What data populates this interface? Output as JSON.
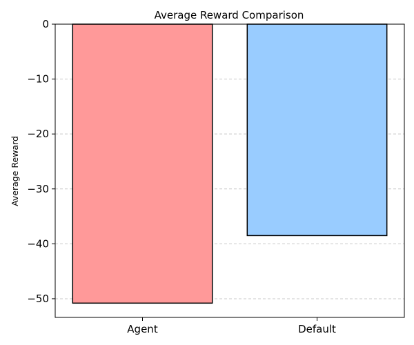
{
  "chart_data": {
    "type": "bar",
    "title": "Average Reward Comparison",
    "xlabel": "",
    "ylabel": "Average Reward",
    "categories": [
      "Agent",
      "Default"
    ],
    "values": [
      -50.8,
      -38.5
    ],
    "ylim": [
      -53.4,
      0
    ],
    "yticks": [
      0,
      -10,
      -20,
      -30,
      -40,
      -50
    ],
    "ytick_labels": [
      "0",
      "−10",
      "−20",
      "−30",
      "−40",
      "−50"
    ],
    "bar_colors": [
      "#ff9999",
      "#99ccff"
    ],
    "bar_edge_color": "#000000",
    "grid": {
      "axis": "y",
      "style": "dashed",
      "color": "#c8c8c8"
    }
  }
}
